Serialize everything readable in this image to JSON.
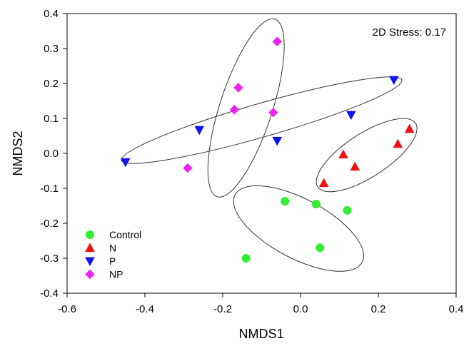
{
  "chart_data": {
    "type": "scatter",
    "xlabel": "NMDS1",
    "ylabel": "NMDS2",
    "xlim": [
      -0.6,
      0.4
    ],
    "ylim": [
      -0.4,
      0.4
    ],
    "xticks": [
      "-0.6",
      "-0.4",
      "-0.2",
      "0.0",
      "0.2",
      "0.4"
    ],
    "yticks": [
      "-0.4",
      "-0.3",
      "-0.2",
      "-0.1",
      "0.0",
      "0.1",
      "0.2",
      "0.3",
      "0.4"
    ],
    "annotation": "2D Stress: 0.17",
    "grid": false,
    "legend_position": "bottom-left",
    "series": [
      {
        "name": "Control",
        "marker": "circle",
        "color": "#33ee33",
        "points": [
          [
            -0.14,
            -0.3
          ],
          [
            -0.04,
            -0.137
          ],
          [
            0.04,
            -0.145
          ],
          [
            0.12,
            -0.163
          ],
          [
            0.05,
            -0.27
          ]
        ]
      },
      {
        "name": "N",
        "marker": "triangle-up",
        "color": "#ee1111",
        "points": [
          [
            0.28,
            0.07
          ],
          [
            0.25,
            0.027
          ],
          [
            0.11,
            -0.003
          ],
          [
            0.14,
            -0.038
          ],
          [
            0.06,
            -0.085
          ]
        ]
      },
      {
        "name": "P",
        "marker": "triangle-down",
        "color": "#1111ee",
        "points": [
          [
            0.24,
            0.21
          ],
          [
            0.13,
            0.11
          ],
          [
            -0.26,
            0.067
          ],
          [
            -0.06,
            0.036
          ],
          [
            -0.45,
            -0.025
          ]
        ]
      },
      {
        "name": "NP",
        "marker": "diamond",
        "color": "#ee22ee",
        "points": [
          [
            -0.06,
            0.32
          ],
          [
            -0.16,
            0.188
          ],
          [
            -0.17,
            0.125
          ],
          [
            -0.07,
            0.117
          ],
          [
            -0.29,
            -0.042
          ]
        ]
      }
    ],
    "ellipses": [
      {
        "group": "Control",
        "cx": -0.005,
        "cy": -0.215,
        "rx": 0.185,
        "ry": 0.085,
        "angle_deg": 28
      },
      {
        "group": "N",
        "cx": 0.17,
        "cy": -0.005,
        "rx": 0.15,
        "ry": 0.062,
        "angle_deg": -33
      },
      {
        "group": "P",
        "cx": -0.1,
        "cy": 0.095,
        "rx": 0.375,
        "ry": 0.048,
        "angle_deg": -16
      },
      {
        "group": "NP",
        "cx": -0.14,
        "cy": 0.13,
        "rx": 0.24,
        "ry": 0.075,
        "angle_deg": 108
      }
    ]
  }
}
